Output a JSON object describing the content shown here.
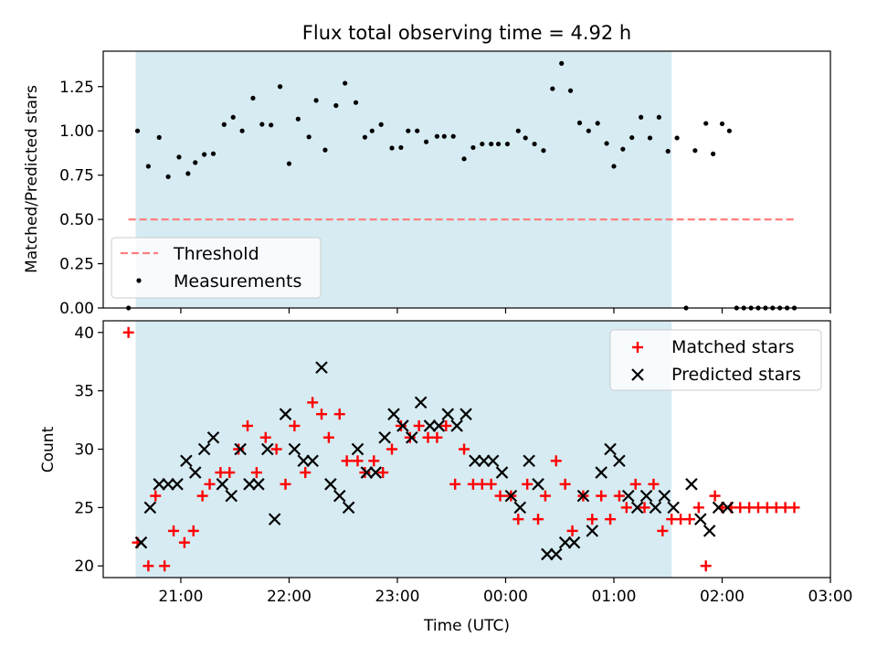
{
  "title": "Flux total observing time = 4.92 h",
  "colors": {
    "background": "#ffffff",
    "shade": "#add8e6",
    "threshold": "#ff7f7f",
    "measurement": "#000000",
    "matched": "#ff0000",
    "predicted": "#000000"
  },
  "chart_data": [
    {
      "type": "scatter",
      "ylabel": "Matched/Predicted stars",
      "xlabel": "",
      "xlim": [
        "20:17",
        "03:00"
      ],
      "ylim": [
        0,
        1.45
      ],
      "yticks": [
        0.0,
        0.25,
        0.5,
        0.75,
        1.0,
        1.25
      ],
      "ytick_labels": [
        "0.00",
        "0.25",
        "0.50",
        "0.75",
        "1.00",
        "1.25"
      ],
      "xticks": [
        "21:00",
        "22:00",
        "23:00",
        "00:00",
        "01:00",
        "02:00",
        "03:00"
      ],
      "xtick_labels_visible": false,
      "shaded_span": [
        "20:35",
        "01:32"
      ],
      "legend_position": "lower-left",
      "threshold": {
        "name": "Threshold",
        "value": 0.5,
        "x_range": [
          "20:31",
          "02:40"
        ],
        "style": "dashed"
      },
      "series": [
        {
          "name": "Measurements",
          "marker": "dot",
          "points": [
            [
              "20:31",
              0.0
            ],
            [
              "20:36",
              1.0
            ],
            [
              "20:42",
              0.8
            ],
            [
              "20:48",
              0.963
            ],
            [
              "20:53",
              0.741
            ],
            [
              "20:59",
              0.852
            ],
            [
              "21:04",
              0.759
            ],
            [
              "21:08",
              0.821
            ],
            [
              "21:13",
              0.867
            ],
            [
              "21:18",
              0.871
            ],
            [
              "21:24",
              1.036
            ],
            [
              "21:29",
              1.077
            ],
            [
              "21:34",
              1.0
            ],
            [
              "21:40",
              1.185
            ],
            [
              "21:45",
              1.037
            ],
            [
              "21:50",
              1.033
            ],
            [
              "21:55",
              1.25
            ],
            [
              "22:00",
              0.815
            ],
            [
              "22:05",
              1.067
            ],
            [
              "22:11",
              0.966
            ],
            [
              "22:15",
              1.172
            ],
            [
              "22:20",
              0.892
            ],
            [
              "22:26",
              1.143
            ],
            [
              "22:31",
              1.269
            ],
            [
              "22:37",
              1.16
            ],
            [
              "22:42",
              0.964
            ],
            [
              "22:46",
              1.0
            ],
            [
              "22:51",
              1.036
            ],
            [
              "22:57",
              0.903
            ],
            [
              "23:02",
              0.906
            ],
            [
              "23:06",
              1.0
            ],
            [
              "23:11",
              1.0
            ],
            [
              "23:16",
              0.938
            ],
            [
              "23:22",
              0.969
            ],
            [
              "23:26",
              0.969
            ],
            [
              "23:31",
              0.969
            ],
            [
              "23:37",
              0.842
            ],
            [
              "23:42",
              0.906
            ],
            [
              "23:47",
              0.926
            ],
            [
              "23:52",
              0.926
            ],
            [
              "23:56",
              0.926
            ],
            [
              "00:01",
              0.926
            ],
            [
              "00:07",
              1.0
            ],
            [
              "00:11",
              0.96
            ],
            [
              "00:16",
              0.926
            ],
            [
              "00:21",
              0.889
            ],
            [
              "00:26",
              1.238
            ],
            [
              "00:31",
              1.381
            ],
            [
              "00:36",
              1.227
            ],
            [
              "00:41",
              1.045
            ],
            [
              "00:46",
              1.0
            ],
            [
              "00:51",
              1.043
            ],
            [
              "00:56",
              0.929
            ],
            [
              "01:00",
              0.8
            ],
            [
              "01:05",
              0.897
            ],
            [
              "01:10",
              0.962
            ],
            [
              "01:15",
              1.077
            ],
            [
              "01:20",
              0.96
            ],
            [
              "01:25",
              1.077
            ],
            [
              "01:30",
              0.885
            ],
            [
              "01:35",
              0.96
            ],
            [
              "01:40",
              0.0
            ],
            [
              "01:45",
              0.889
            ],
            [
              "01:51",
              1.042
            ],
            [
              "01:55",
              0.87
            ],
            [
              "02:00",
              1.04
            ],
            [
              "02:04",
              1.0
            ],
            [
              "02:08",
              0.0
            ],
            [
              "02:12",
              0.0
            ],
            [
              "02:16",
              0.0
            ],
            [
              "02:20",
              0.0
            ],
            [
              "02:24",
              0.0
            ],
            [
              "02:28",
              0.0
            ],
            [
              "02:32",
              0.0
            ],
            [
              "02:36",
              0.0
            ],
            [
              "02:40",
              0.0
            ]
          ]
        }
      ]
    },
    {
      "type": "scatter",
      "ylabel": "Count",
      "xlabel": "Time (UTC)",
      "xlim": [
        "20:17",
        "03:00"
      ],
      "ylim": [
        19,
        41
      ],
      "yticks": [
        20,
        25,
        30,
        35,
        40
      ],
      "xticks": [
        "21:00",
        "22:00",
        "23:00",
        "00:00",
        "01:00",
        "02:00",
        "03:00"
      ],
      "shaded_span": [
        "20:35",
        "01:32"
      ],
      "legend_position": "upper-right",
      "series": [
        {
          "name": "Matched stars",
          "marker": "plus",
          "points": [
            [
              "20:31",
              40
            ],
            [
              "20:36",
              22
            ],
            [
              "20:42",
              20
            ],
            [
              "20:46",
              26
            ],
            [
              "20:51",
              20
            ],
            [
              "20:56",
              23
            ],
            [
              "21:02",
              22
            ],
            [
              "21:07",
              23
            ],
            [
              "21:12",
              26
            ],
            [
              "21:16",
              27
            ],
            [
              "21:22",
              28
            ],
            [
              "21:27",
              28
            ],
            [
              "21:32",
              30
            ],
            [
              "21:37",
              32
            ],
            [
              "21:42",
              28
            ],
            [
              "21:47",
              31
            ],
            [
              "21:53",
              30
            ],
            [
              "21:58",
              27
            ],
            [
              "22:03",
              32
            ],
            [
              "22:09",
              28
            ],
            [
              "22:13",
              34
            ],
            [
              "22:18",
              33
            ],
            [
              "22:22",
              31
            ],
            [
              "22:28",
              33
            ],
            [
              "22:32",
              29
            ],
            [
              "22:38",
              29
            ],
            [
              "22:42",
              28
            ],
            [
              "22:47",
              29
            ],
            [
              "22:52",
              28
            ],
            [
              "22:57",
              30
            ],
            [
              "23:02",
              32
            ],
            [
              "23:07",
              31
            ],
            [
              "23:12",
              32
            ],
            [
              "23:17",
              31
            ],
            [
              "23:22",
              31
            ],
            [
              "23:27",
              32
            ],
            [
              "23:32",
              27
            ],
            [
              "23:37",
              30
            ],
            [
              "23:42",
              27
            ],
            [
              "23:47",
              27
            ],
            [
              "23:52",
              27
            ],
            [
              "23:57",
              26
            ],
            [
              "00:03",
              26
            ],
            [
              "00:07",
              24
            ],
            [
              "00:12",
              27
            ],
            [
              "00:18",
              24
            ],
            [
              "00:22",
              26
            ],
            [
              "00:28",
              29
            ],
            [
              "00:33",
              27
            ],
            [
              "00:37",
              23
            ],
            [
              "00:43",
              26
            ],
            [
              "00:48",
              24
            ],
            [
              "00:53",
              26
            ],
            [
              "00:58",
              24
            ],
            [
              "01:03",
              26
            ],
            [
              "01:07",
              25
            ],
            [
              "01:12",
              27
            ],
            [
              "01:17",
              25
            ],
            [
              "01:22",
              27
            ],
            [
              "01:27",
              23
            ],
            [
              "01:32",
              24
            ],
            [
              "01:37",
              24
            ],
            [
              "01:42",
              24
            ],
            [
              "01:47",
              25
            ],
            [
              "01:51",
              20
            ],
            [
              "01:56",
              26
            ],
            [
              "02:00",
              25
            ],
            [
              "02:05",
              25
            ],
            [
              "02:10",
              25
            ],
            [
              "02:15",
              25
            ],
            [
              "02:20",
              25
            ],
            [
              "02:25",
              25
            ],
            [
              "02:30",
              25
            ],
            [
              "02:35",
              25
            ],
            [
              "02:40",
              25
            ]
          ]
        },
        {
          "name": "Predicted stars",
          "marker": "x",
          "points": [
            [
              "20:38",
              22
            ],
            [
              "20:43",
              25
            ],
            [
              "20:48",
              27
            ],
            [
              "20:53",
              27
            ],
            [
              "20:58",
              27
            ],
            [
              "21:03",
              29
            ],
            [
              "21:08",
              28
            ],
            [
              "21:13",
              30
            ],
            [
              "21:18",
              31
            ],
            [
              "21:23",
              27
            ],
            [
              "21:28",
              26
            ],
            [
              "21:33",
              30
            ],
            [
              "21:38",
              27
            ],
            [
              "21:43",
              27
            ],
            [
              "21:48",
              30
            ],
            [
              "21:52",
              24
            ],
            [
              "21:58",
              33
            ],
            [
              "22:03",
              30
            ],
            [
              "22:08",
              29
            ],
            [
              "22:13",
              29
            ],
            [
              "22:18",
              37
            ],
            [
              "22:23",
              27
            ],
            [
              "22:28",
              26
            ],
            [
              "22:33",
              25
            ],
            [
              "22:38",
              30
            ],
            [
              "22:43",
              28
            ],
            [
              "22:48",
              28
            ],
            [
              "22:53",
              31
            ],
            [
              "22:58",
              33
            ],
            [
              "23:03",
              32
            ],
            [
              "23:08",
              31
            ],
            [
              "23:13",
              34
            ],
            [
              "23:18",
              32
            ],
            [
              "23:23",
              32
            ],
            [
              "23:28",
              33
            ],
            [
              "23:33",
              32
            ],
            [
              "23:38",
              33
            ],
            [
              "23:43",
              29
            ],
            [
              "23:48",
              29
            ],
            [
              "23:53",
              29
            ],
            [
              "23:58",
              28
            ],
            [
              "00:03",
              26
            ],
            [
              "00:08",
              25
            ],
            [
              "00:13",
              29
            ],
            [
              "00:18",
              27
            ],
            [
              "00:23",
              21
            ],
            [
              "00:28",
              21
            ],
            [
              "00:33",
              22
            ],
            [
              "00:38",
              22
            ],
            [
              "00:43",
              26
            ],
            [
              "00:48",
              23
            ],
            [
              "00:53",
              28
            ],
            [
              "00:58",
              30
            ],
            [
              "01:03",
              29
            ],
            [
              "01:08",
              26
            ],
            [
              "01:13",
              25
            ],
            [
              "01:18",
              26
            ],
            [
              "01:23",
              25
            ],
            [
              "01:28",
              26
            ],
            [
              "01:33",
              25
            ],
            [
              "01:43",
              27
            ],
            [
              "01:48",
              24
            ],
            [
              "01:53",
              23
            ],
            [
              "01:58",
              25
            ],
            [
              "02:03",
              25
            ]
          ]
        }
      ]
    }
  ]
}
